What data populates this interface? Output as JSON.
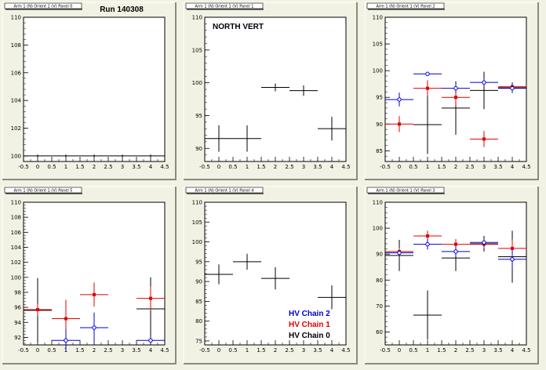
{
  "colors": {
    "background": "#f2f2e4",
    "plot_bg": "#ffffff",
    "chain0": "#000000",
    "chain1": "#e00000",
    "chain2": "#0000d0"
  },
  "chart_data": [
    {
      "type": "scatter",
      "title": "Arm 1 (N) Orient 1 (V) Panel 0",
      "annotation": "Run 140308",
      "xlim": [
        -0.5,
        4.5
      ],
      "ylim": [
        99.6,
        110
      ],
      "xticks": [
        "-0.5",
        "0",
        "0.5",
        "1",
        "1.5",
        "2",
        "2.5",
        "3",
        "3.5",
        "4",
        "4.5"
      ],
      "yticks": [
        "100",
        "102",
        "104",
        "106",
        "108",
        "110"
      ],
      "series": [
        {
          "color": "black",
          "marker": "none",
          "x": [
            0,
            1,
            2,
            3,
            4
          ],
          "y": [
            100,
            100,
            100,
            100,
            100
          ],
          "yerr": [
            0.1,
            0.1,
            0.1,
            0.1,
            0.1
          ]
        }
      ]
    },
    {
      "type": "scatter",
      "title": "Arm 1 (N) Orient 1 (V) Panel 1",
      "annotation": "NORTH VERT",
      "xlim": [
        -0.5,
        4.5
      ],
      "ylim": [
        88,
        110
      ],
      "xticks": [
        "-0.5",
        "0",
        "0.5",
        "1",
        "1.5",
        "2",
        "2.5",
        "3",
        "3.5",
        "4",
        "4.5"
      ],
      "yticks": [
        "90",
        "95",
        "100",
        "105",
        "110"
      ],
      "series": [
        {
          "color": "black",
          "marker": "none",
          "x": [
            0,
            1,
            2,
            3,
            4
          ],
          "y": [
            91.5,
            91.5,
            99.3,
            98.8,
            93
          ],
          "yerr": [
            2,
            2,
            0.6,
            0.8,
            1.8
          ]
        }
      ]
    },
    {
      "type": "scatter",
      "title": "Arm 1 (N) Orient 1 (V) Panel 2",
      "xlim": [
        -0.5,
        4.5
      ],
      "ylim": [
        83,
        110
      ],
      "xticks": [
        "-0.5",
        "0",
        "0.5",
        "1",
        "1.5",
        "2",
        "2.5",
        "3",
        "3.5",
        "4",
        "4.5"
      ],
      "yticks": [
        "85",
        "90",
        "95",
        "100",
        "105",
        "110"
      ],
      "series": [
        {
          "color": "black",
          "marker": "none",
          "x": [
            1,
            2,
            3,
            4
          ],
          "y": [
            89.9,
            93,
            96.3,
            96.8
          ],
          "yerr": [
            5.5,
            5,
            3.5,
            1
          ]
        },
        {
          "color": "red",
          "marker": "filled",
          "x": [
            0,
            1,
            2,
            3,
            4
          ],
          "y": [
            90,
            96.7,
            95,
            87.2,
            97
          ],
          "yerr": [
            1.5,
            1.5,
            1.5,
            1.5,
            0.5
          ]
        },
        {
          "color": "blue",
          "marker": "open",
          "x": [
            0,
            1,
            2,
            3,
            4
          ],
          "y": [
            94.6,
            99.4,
            96.7,
            97.8,
            96.7
          ],
          "yerr": [
            1.3,
            0.4,
            0.8,
            0.8,
            0.8
          ]
        }
      ]
    },
    {
      "type": "scatter",
      "title": "Arm 1 (N) Orient 1 (V) Panel 5",
      "xlim": [
        -0.5,
        4.5
      ],
      "ylim": [
        91,
        110
      ],
      "xticks": [
        "-0.5",
        "0",
        "0.5",
        "1",
        "1.5",
        "2",
        "2.5",
        "3",
        "3.5",
        "4",
        "4.5"
      ],
      "yticks": [
        "92",
        "94",
        "96",
        "98",
        "100",
        "102",
        "104",
        "106",
        "108",
        "110"
      ],
      "series": [
        {
          "color": "black",
          "marker": "none",
          "x": [
            0,
            4
          ],
          "y": [
            95.6,
            95.8
          ],
          "yerr": [
            4.3,
            4.2
          ]
        },
        {
          "color": "red",
          "marker": "filled",
          "x": [
            0,
            1,
            2,
            4
          ],
          "y": [
            95.7,
            94.5,
            97.7,
            97.2
          ],
          "yerr": [
            0.8,
            2.5,
            1.6,
            1.6
          ]
        },
        {
          "color": "blue",
          "marker": "open",
          "x": [
            1,
            2,
            4
          ],
          "y": [
            91.6,
            93.3,
            91.6
          ],
          "yerr": [
            1.5,
            2,
            0.5
          ]
        }
      ]
    },
    {
      "type": "scatter",
      "title": "Arm 1 (N) Orient 1 (V) Panel 4",
      "xlim": [
        -0.5,
        4.5
      ],
      "ylim": [
        74,
        110
      ],
      "xticks": [
        "-0.5",
        "0",
        "0.5",
        "1",
        "1.5",
        "2",
        "2.5",
        "3",
        "3.5",
        "4",
        "4.5"
      ],
      "yticks": [
        "75",
        "80",
        "85",
        "90",
        "95",
        "100",
        "105",
        "110"
      ],
      "legend": {
        "position": "bottom-right",
        "entries": [
          {
            "label": "HV Chain 2",
            "color": "blue"
          },
          {
            "label": "HV Chain 1",
            "color": "red"
          },
          {
            "label": "HV Chain 0",
            "color": "black"
          }
        ]
      },
      "series": [
        {
          "color": "black",
          "marker": "none",
          "x": [
            0,
            1,
            2,
            4
          ],
          "y": [
            91.8,
            95,
            90.8,
            86
          ],
          "yerr": [
            2.5,
            2,
            2.8,
            3
          ]
        }
      ]
    },
    {
      "type": "scatter",
      "title": "Arm 1 (N) Orient 1 (V) Panel 3",
      "xlim": [
        -0.5,
        4.5
      ],
      "ylim": [
        55,
        110
      ],
      "xticks": [
        "-0.5",
        "0",
        "0.5",
        "1",
        "1.5",
        "2",
        "2.5",
        "3",
        "3.5",
        "4",
        "4.5"
      ],
      "yticks": [
        "60",
        "70",
        "80",
        "90",
        "100",
        "110"
      ],
      "series": [
        {
          "color": "black",
          "marker": "none",
          "x": [
            0,
            1,
            2,
            3,
            4
          ],
          "y": [
            89.5,
            66.5,
            88.5,
            94,
            89
          ],
          "yerr": [
            6,
            9.5,
            5,
            3,
            10
          ]
        },
        {
          "color": "red",
          "marker": "filled",
          "x": [
            0,
            1,
            2,
            3,
            4
          ],
          "y": [
            91,
            97,
            93.8,
            93.8,
            92.2
          ],
          "yerr": [
            1.5,
            2,
            2,
            1.5,
            3.5
          ]
        },
        {
          "color": "blue",
          "marker": "open",
          "x": [
            0,
            1,
            2,
            3,
            4
          ],
          "y": [
            90.5,
            93.8,
            91,
            94.5,
            88
          ],
          "yerr": [
            1,
            2,
            1.8,
            1.5,
            3.5
          ]
        }
      ]
    }
  ]
}
